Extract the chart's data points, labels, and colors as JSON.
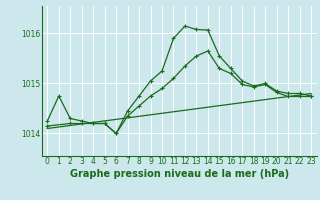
{
  "bg_color": "#cce8ec",
  "grid_color": "#ffffff",
  "line_color": "#1a6b1a",
  "xlabel": "Graphe pression niveau de la mer (hPa)",
  "xlabel_fontsize": 7,
  "tick_fontsize": 5.5,
  "ylim": [
    1013.55,
    1016.55
  ],
  "xlim": [
    -0.5,
    23.5
  ],
  "yticks": [
    1014,
    1015,
    1016
  ],
  "xticks": [
    0,
    1,
    2,
    3,
    4,
    5,
    6,
    7,
    8,
    9,
    10,
    11,
    12,
    13,
    14,
    15,
    16,
    17,
    18,
    19,
    20,
    21,
    22,
    23
  ],
  "line1_x": [
    0,
    1,
    2,
    3,
    4,
    5,
    6,
    7,
    8,
    9,
    10,
    11,
    12,
    13,
    14,
    15,
    16,
    17,
    18,
    19,
    20,
    21,
    22,
    23
  ],
  "line1_y": [
    1014.25,
    1014.75,
    1014.3,
    1014.25,
    1014.2,
    1014.2,
    1014.0,
    1014.45,
    1014.75,
    1015.05,
    1015.25,
    1015.9,
    1016.15,
    1016.08,
    1016.07,
    1015.55,
    1015.3,
    1015.05,
    1014.95,
    1015.0,
    1014.85,
    1014.8,
    1014.8,
    1014.75
  ],
  "line2_x": [
    0,
    2,
    3,
    4,
    5,
    6,
    7,
    8,
    9,
    10,
    11,
    12,
    13,
    14,
    15,
    16,
    17,
    18,
    19,
    20,
    21,
    22,
    23
  ],
  "line2_y": [
    1014.15,
    1014.2,
    1014.2,
    1014.2,
    1014.2,
    1014.0,
    1014.35,
    1014.55,
    1014.75,
    1014.9,
    1015.1,
    1015.35,
    1015.55,
    1015.65,
    1015.3,
    1015.2,
    1014.98,
    1014.93,
    1014.98,
    1014.82,
    1014.74,
    1014.74,
    1014.74
  ],
  "line3_x": [
    0,
    23
  ],
  "line3_y": [
    1014.1,
    1014.8
  ]
}
